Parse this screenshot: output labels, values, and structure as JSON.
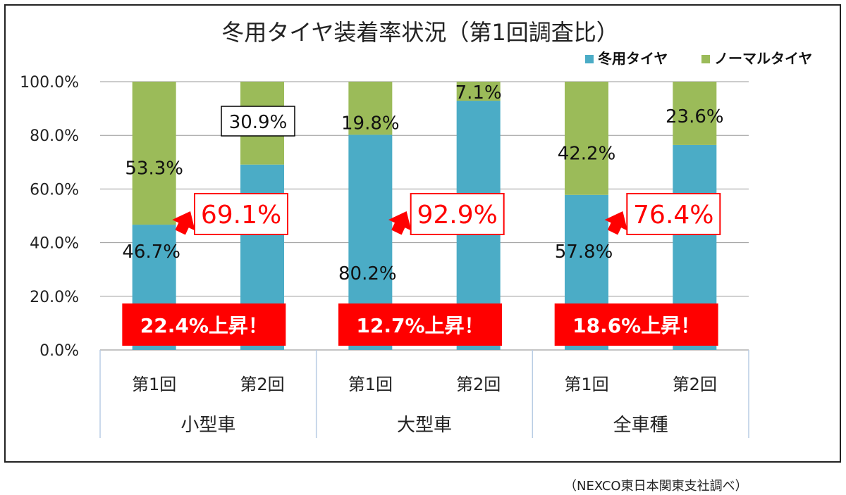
{
  "chart_data": {
    "type": "bar",
    "stacked": true,
    "percent_stacked": true,
    "title": "冬用タイヤ装着率状況（第1回調査比）",
    "ylim": [
      0,
      100
    ],
    "yticks": [
      "0.0%",
      "20.0%",
      "40.0%",
      "60.0%",
      "80.0%",
      "100.0%"
    ],
    "grid": true,
    "legend_position": "top-right",
    "categories": [
      "第1回",
      "第2回",
      "第1回",
      "第2回",
      "第1回",
      "第2回"
    ],
    "groups": [
      "小型車",
      "大型車",
      "全車種"
    ],
    "series": [
      {
        "name": "冬用タイヤ",
        "color": "#4bacc6",
        "values": [
          46.7,
          69.1,
          80.2,
          92.9,
          57.8,
          76.4
        ],
        "value_labels": [
          "46.7%",
          "69.1%",
          "80.2%",
          "92.9%",
          "57.8%",
          "76.4%"
        ]
      },
      {
        "name": "ノーマルタイヤ",
        "color": "#9bbb59",
        "values": [
          53.3,
          30.9,
          19.8,
          7.1,
          42.2,
          23.6
        ],
        "value_labels": [
          "53.3%",
          "30.9%",
          "19.8%",
          "7.1%",
          "42.2%",
          "23.6%"
        ]
      }
    ],
    "increase_badges": [
      "22.4%上昇！",
      "12.7%上昇！",
      "18.6%上昇！"
    ],
    "highlight_color": "#ff0000"
  },
  "source_note": "（NEXCO東日本関東支社調べ）"
}
